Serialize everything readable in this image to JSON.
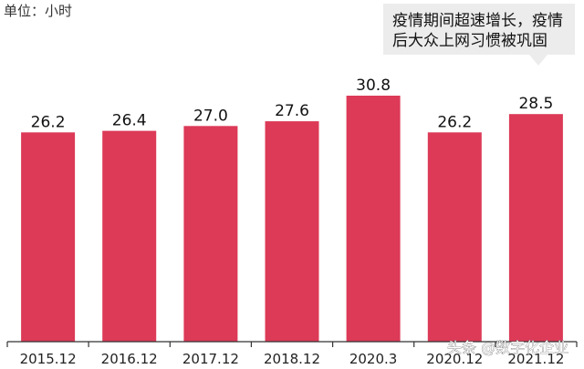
{
  "unit_label": "单位：小时",
  "callout": {
    "lines": [
      "疫情期间超速增长，疫情",
      "后大众上网习惯被巩固"
    ]
  },
  "watermark": "头条 @数字化企业",
  "colors": {
    "bar": "#dc3a57",
    "axis": "#333333",
    "callout_bg": "#ececec"
  },
  "chart_data": {
    "type": "bar",
    "title": "",
    "xlabel": "",
    "ylabel": "单位：小时",
    "categories": [
      "2015.12",
      "2016.12",
      "2017.12",
      "2018.12",
      "2020.3",
      "2020.12",
      "2021.12"
    ],
    "values": [
      26.2,
      26.4,
      27.0,
      27.6,
      30.8,
      26.2,
      28.5
    ],
    "value_labels": [
      "26.2",
      "26.4",
      "27.0",
      "27.6",
      "30.8",
      "26.2",
      "28.5"
    ],
    "ylim": [
      0,
      35
    ],
    "grid": false,
    "legend": "none"
  }
}
